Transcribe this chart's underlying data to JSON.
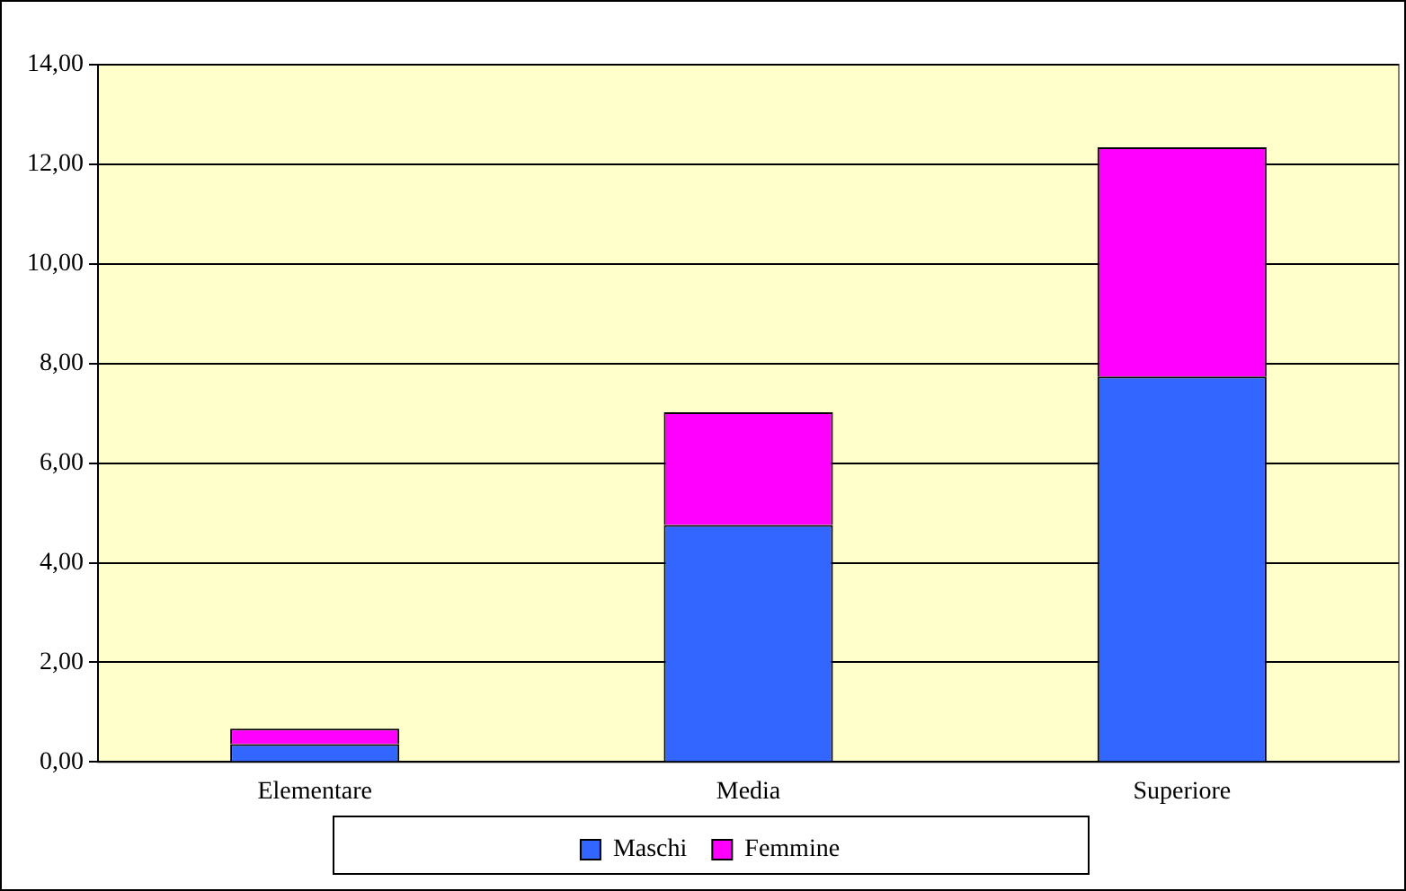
{
  "chart_data": {
    "type": "bar",
    "stacked": true,
    "categories": [
      "Elementare",
      "Media",
      "Superiore"
    ],
    "series": [
      {
        "name": "Maschi",
        "color": "#3366ff",
        "values": [
          0.36,
          4.76,
          7.74
        ]
      },
      {
        "name": "Femmine",
        "color": "#ff00ff",
        "values": [
          0.31,
          2.26,
          4.6
        ]
      }
    ],
    "ylim": [
      0,
      14
    ],
    "yticks": [
      {
        "value": 0,
        "label": "0,00"
      },
      {
        "value": 2,
        "label": "2,00"
      },
      {
        "value": 4,
        "label": "4,00"
      },
      {
        "value": 6,
        "label": "6,00"
      },
      {
        "value": 8,
        "label": "8,00"
      },
      {
        "value": 10,
        "label": "10,00"
      },
      {
        "value": 12,
        "label": "12,00"
      },
      {
        "value": 14,
        "label": "14,00"
      }
    ],
    "grid": "y",
    "legend": "bottom"
  }
}
